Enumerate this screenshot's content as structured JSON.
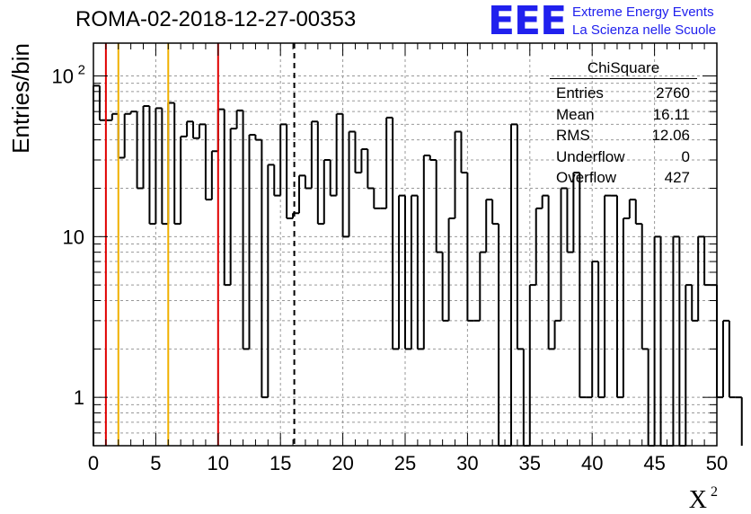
{
  "figure": {
    "title": "ROMA-02-2018-12-27-00353",
    "brand": {
      "logo_text": "EEE",
      "line1": "Extreme Energy Events",
      "line2": "La Scienza nelle Scuole",
      "color": "#2020ee"
    }
  },
  "stats_box": {
    "title": "ChiSquare",
    "rows": [
      {
        "label": "Entries",
        "value": "2760"
      },
      {
        "label": "Mean",
        "value": "16.11"
      },
      {
        "label": "RMS",
        "value": "12.06"
      },
      {
        "label": "Underflow",
        "value": "0"
      },
      {
        "label": "Overflow",
        "value": "427"
      }
    ]
  },
  "chart_data": {
    "type": "histogram",
    "xlabel": "X²",
    "ylabel": "Entries/bin",
    "xlim": [
      0,
      50
    ],
    "ylim": [
      0.5,
      160
    ],
    "yscale": "log",
    "grid": true,
    "bin_width": 0.5,
    "x_ticks": [
      "0",
      "5",
      "10",
      "15",
      "20",
      "25",
      "30",
      "35",
      "40",
      "45",
      "50"
    ],
    "y_ticks": [
      {
        "value": 1,
        "label": "1"
      },
      {
        "value": 10,
        "label": "10"
      },
      {
        "value": 100,
        "label": "10²"
      }
    ],
    "values": [
      87,
      53,
      53,
      58,
      31,
      58,
      60,
      20,
      65,
      12,
      63,
      12,
      68,
      12,
      42,
      52,
      41,
      50,
      17,
      34,
      62,
      5,
      47,
      61,
      2,
      43,
      40,
      1,
      28,
      18,
      50,
      13,
      14,
      24,
      20,
      52,
      12,
      30,
      18,
      58,
      10,
      45,
      25,
      35,
      20,
      15,
      15,
      55,
      2,
      18,
      2,
      18,
      2,
      32,
      30,
      8,
      3,
      13,
      45,
      25,
      3,
      3,
      8,
      17,
      12,
      0,
      0,
      50,
      2,
      0,
      5,
      15,
      18,
      2,
      3,
      20,
      8,
      25,
      1,
      1,
      7,
      1,
      18,
      18,
      1,
      13,
      17,
      12,
      2,
      0,
      10,
      0,
      0,
      10,
      0,
      5,
      3,
      10,
      5,
      5,
      1,
      3,
      1,
      1
    ],
    "reference_lines": [
      {
        "x": 1,
        "color": "#e00000",
        "style": "solid"
      },
      {
        "x": 2,
        "color": "#f0b000",
        "style": "solid"
      },
      {
        "x": 6,
        "color": "#f0b000",
        "style": "solid"
      },
      {
        "x": 10,
        "color": "#e00000",
        "style": "solid"
      },
      {
        "x": 16.11,
        "color": "#000000",
        "style": "dashed"
      }
    ]
  }
}
